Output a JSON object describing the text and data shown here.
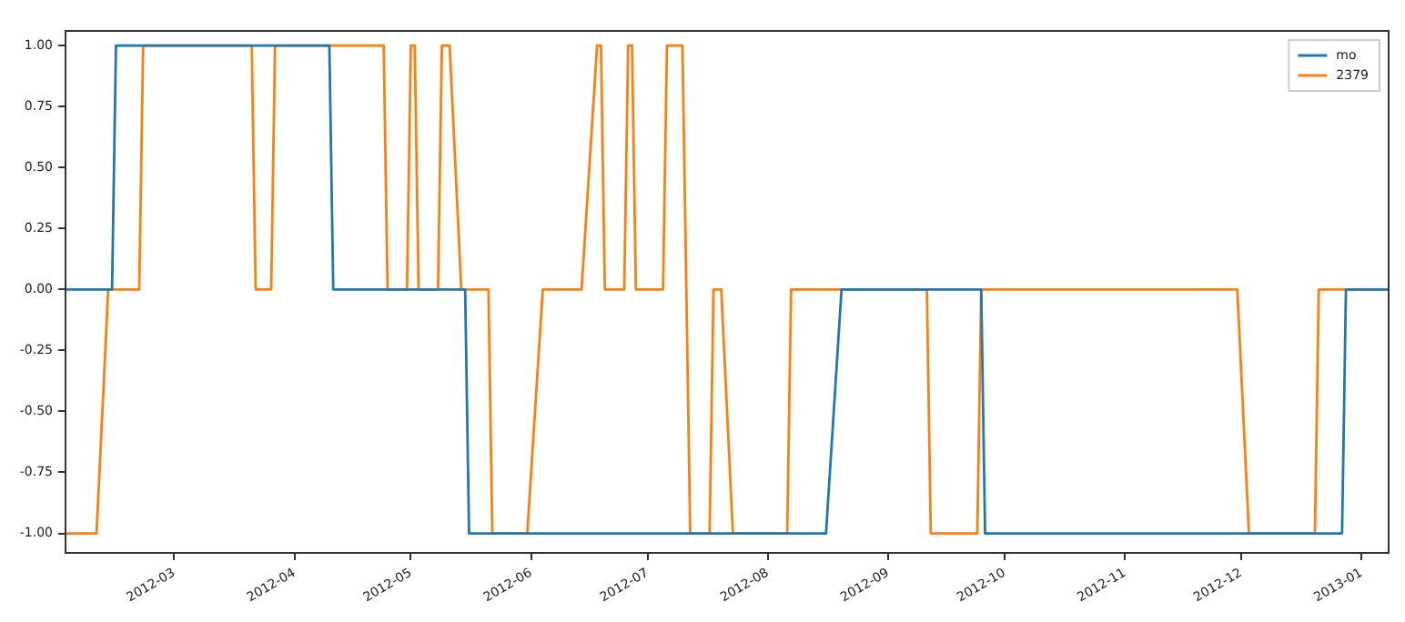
{
  "chart_data": {
    "type": "line",
    "xlim": [
      "2012-02-02",
      "2013-01-08"
    ],
    "ylim": [
      -1.08,
      1.06
    ],
    "xticks": [
      "2012-03",
      "2012-04",
      "2012-05",
      "2012-06",
      "2012-07",
      "2012-08",
      "2012-09",
      "2012-10",
      "2012-11",
      "2012-12",
      "2013-01"
    ],
    "yticks": [
      {
        "value": -1,
        "label": "-1.00"
      },
      {
        "value": -0.75,
        "label": "-0.75"
      },
      {
        "value": -0.5,
        "label": "-0.50"
      },
      {
        "value": -0.25,
        "label": "-0.25"
      },
      {
        "value": 0,
        "label": "0.00"
      },
      {
        "value": 0.25,
        "label": "0.25"
      },
      {
        "value": 0.5,
        "label": "0.50"
      },
      {
        "value": 0.75,
        "label": "0.75"
      },
      {
        "value": 1,
        "label": "1.00"
      }
    ],
    "grid": false,
    "legend": "top right",
    "marker": "none",
    "line_style": "solid",
    "series": [
      {
        "name": "mo",
        "color": "#1f77b4",
        "x": [
          "2012-02-02",
          "2012-02-14",
          "2012-02-15",
          "2012-04-10",
          "2012-04-11",
          "2012-05-15",
          "2012-05-16",
          "2012-08-16",
          "2012-08-20",
          "2012-09-25",
          "2012-09-26",
          "2012-12-27",
          "2012-12-28",
          "2013-01-08"
        ],
        "values": [
          0,
          0,
          1,
          1,
          0,
          0,
          -1,
          -1,
          0,
          0,
          -1,
          -1,
          0,
          0
        ]
      },
      {
        "name": "2379",
        "color": "#ff7f0e",
        "x": [
          "2012-02-02",
          "2012-02-10",
          "2012-02-13",
          "2012-02-21",
          "2012-02-22",
          "2012-03-21",
          "2012-03-22",
          "2012-03-26",
          "2012-03-27",
          "2012-04-24",
          "2012-04-25",
          "2012-04-30",
          "2012-05-01",
          "2012-05-02",
          "2012-05-03",
          "2012-05-08",
          "2012-05-09",
          "2012-05-11",
          "2012-05-14",
          "2012-05-21",
          "2012-05-22",
          "2012-05-31",
          "2012-06-04",
          "2012-06-14",
          "2012-06-18",
          "2012-06-19",
          "2012-06-20",
          "2012-06-25",
          "2012-06-26",
          "2012-06-27",
          "2012-06-28",
          "2012-07-05",
          "2012-07-06",
          "2012-07-10",
          "2012-07-11",
          "2012-07-12",
          "2012-07-17",
          "2012-07-18",
          "2012-07-20",
          "2012-07-23",
          "2012-08-06",
          "2012-08-07",
          "2012-09-11",
          "2012-09-12",
          "2012-09-24",
          "2012-09-25",
          "2012-11-30",
          "2012-12-03",
          "2012-12-20",
          "2012-12-21",
          "2013-01-08"
        ],
        "values": [
          -1,
          -1,
          0,
          0,
          1,
          1,
          0,
          0,
          1,
          1,
          0,
          0,
          1,
          1,
          0,
          0,
          1,
          1,
          0,
          0,
          -1,
          -1,
          0,
          0,
          1,
          1,
          0,
          0,
          1,
          1,
          0,
          0,
          1,
          1,
          0,
          -1,
          -1,
          0,
          0,
          -1,
          -1,
          0,
          0,
          -1,
          -1,
          0,
          0,
          -1,
          -1,
          0,
          0
        ]
      }
    ]
  }
}
